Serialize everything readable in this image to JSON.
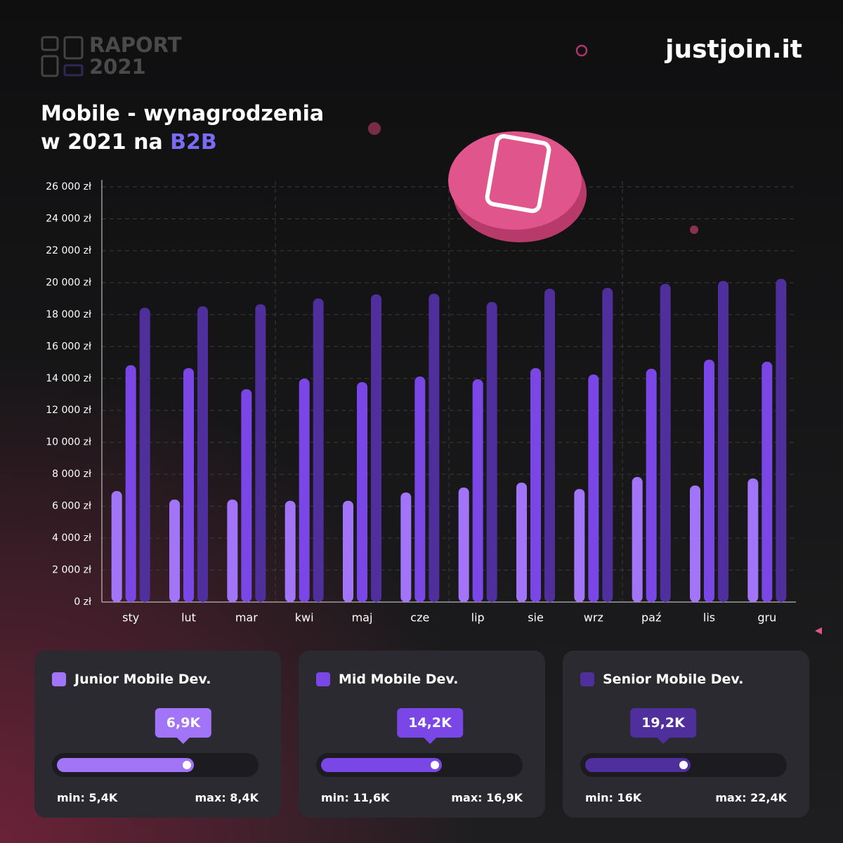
{
  "brand": {
    "report": "RAPORT",
    "year": "2021",
    "logo": "justjoin.it"
  },
  "chart_data": {
    "type": "bar",
    "title_lines": [
      "Mobile - wynagrodzenia",
      "w 2021 na"
    ],
    "title_highlight": "B2B",
    "categories": [
      "sty",
      "lut",
      "mar",
      "kwi",
      "maj",
      "cze",
      "lip",
      "sie",
      "wrz",
      "paź",
      "lis",
      "gru"
    ],
    "series": [
      {
        "name": "Junior Mobile Dev.",
        "color": "#a274f7",
        "values": [
          6950,
          6420,
          6420,
          6340,
          6340,
          6860,
          7170,
          7480,
          7080,
          7830,
          7300,
          7740
        ]
      },
      {
        "name": "Mid Mobile Dev.",
        "color": "#7b46e6",
        "values": [
          14830,
          14650,
          13330,
          13990,
          13770,
          14120,
          13950,
          14650,
          14250,
          14610,
          15180,
          15050
        ]
      },
      {
        "name": "Senior Mobile Dev.",
        "color": "#4f2f9b",
        "values": [
          18430,
          18520,
          18650,
          19010,
          19270,
          19310,
          18790,
          19620,
          19670,
          19930,
          20110,
          20240
        ]
      }
    ],
    "ylim": [
      0,
      26000
    ],
    "yticks": [
      {
        "value": 0,
        "label": "0 zł"
      },
      {
        "value": 2000,
        "label": "2 000 zł"
      },
      {
        "value": 4000,
        "label": "4 000 zł"
      },
      {
        "value": 6000,
        "label": "6 000 zł"
      },
      {
        "value": 8000,
        "label": "8 000 zł"
      },
      {
        "value": 10000,
        "label": "10 000 zł"
      },
      {
        "value": 12000,
        "label": "12 000 zł"
      },
      {
        "value": 14000,
        "label": "14 000 zł"
      },
      {
        "value": 16000,
        "label": "16 000 zł"
      },
      {
        "value": 18000,
        "label": "18 000 zł"
      },
      {
        "value": 20000,
        "label": "20 000 zł"
      },
      {
        "value": 22000,
        "label": "22 000 zł"
      },
      {
        "value": 24000,
        "label": "24 000 zł"
      },
      {
        "value": 26000,
        "label": "26 000 zł"
      }
    ],
    "grid": true
  },
  "cards": [
    {
      "value": "6,9K",
      "min": "min: 5,4K",
      "max": "max: 8,4K"
    },
    {
      "value": "14,2K",
      "min": "min: 11,6K",
      "max": "max: 16,9K"
    },
    {
      "value": "19,2K",
      "min": "min: 16K",
      "max": "max: 22,4K"
    }
  ]
}
